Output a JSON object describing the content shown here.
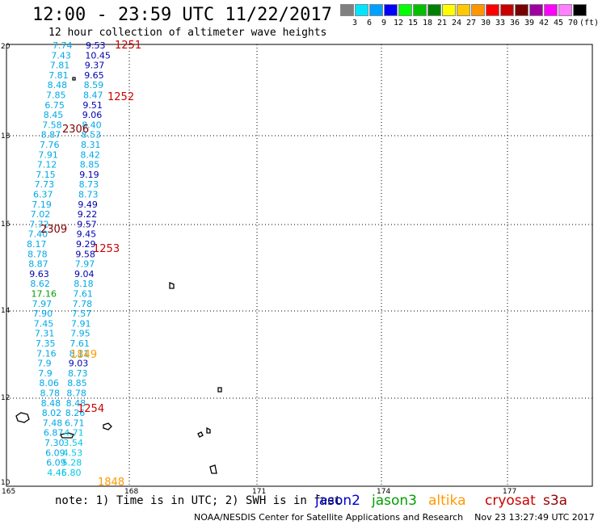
{
  "header": {
    "title": "12:00 - 23:59 UTC 11/22/2017",
    "subtitle": "12 hour collection of altimeter wave heights"
  },
  "color_scale": {
    "labels": [
      "3",
      "6",
      "9",
      "12",
      "15",
      "18",
      "21",
      "24",
      "27",
      "30",
      "33",
      "36",
      "39",
      "42",
      "45",
      "70",
      "(ft)"
    ],
    "colors": [
      "#808080",
      "#00e5ff",
      "#00a0ff",
      "#0000ff",
      "#00ff00",
      "#00c000",
      "#008000",
      "#ffff00",
      "#ffc800",
      "#ff9600",
      "#ff0000",
      "#c80000",
      "#780000",
      "#a000a0",
      "#ff00ff",
      "#ff80ff",
      "#000000"
    ]
  },
  "axes": {
    "x_ticks": [
      "165",
      "168",
      "171",
      "174",
      "177"
    ],
    "y_ticks": [
      "20",
      "18",
      "16",
      "14",
      "12",
      "10"
    ]
  },
  "tracks": {
    "col_a": [
      "7.74",
      "7.43",
      "7.81",
      "7.81",
      "8.48",
      "7.85",
      "6.75",
      "8.45",
      "7.58",
      "8.87",
      "7.76",
      "7.91",
      "7.12",
      "7.15",
      "7.73",
      "6.37",
      "7.19",
      "7.02",
      "7.72",
      "7.40",
      "8.17",
      "8.78",
      "8.87",
      "9.63",
      "8.62",
      "17.16",
      "7.97",
      "7.90",
      "7.45",
      "7.31",
      "7.35",
      "7.16",
      "7.9",
      "7.9",
      "8.06",
      "8.78",
      "8.48",
      "8.02",
      "7.48",
      "6.87",
      "7.30",
      "6.09",
      "6.09",
      "4.46"
    ],
    "col_b": [
      "9.53",
      "10.45",
      "9.37",
      "9.65",
      "8.59",
      "8.47",
      "9.51",
      "9.06",
      "8.40",
      "8.53",
      "8.31",
      "8.42",
      "8.85",
      "9.19",
      "8.73",
      "8.73",
      "9.49",
      "9.22",
      "9.57",
      "9.45",
      "9.29",
      "9.58",
      "7.97",
      "9.04",
      "8.18",
      "7.61",
      "7.78",
      "7.57",
      "7.91",
      "7.95",
      "7.61",
      "8.11",
      "9.03",
      "8.73",
      "8.85",
      "8.78",
      "8.48",
      "8.26",
      "6.71",
      "4.71",
      "3.54",
      "4.53",
      "5.28",
      "5.80"
    ],
    "pass_labels": [
      "1251",
      "1252",
      "2306",
      "2309",
      "1253",
      "1849",
      "1254",
      "1848"
    ]
  },
  "note": "note: 1) Time is in UTC; 2) SWH is in feet",
  "satellites": [
    {
      "name": "jason2",
      "color": "#0000cc"
    },
    {
      "name": "jason3",
      "color": "#00a000"
    },
    {
      "name": "altika",
      "color": "#ff9900"
    },
    {
      "name": "cryosat",
      "color": "#cc0000"
    },
    {
      "name": "s3a",
      "color": "#990000"
    }
  ],
  "footer": "NOAA/NESDIS Center for Satellite Applications and Research    Nov 23 13:27:49 UTC 2017"
}
